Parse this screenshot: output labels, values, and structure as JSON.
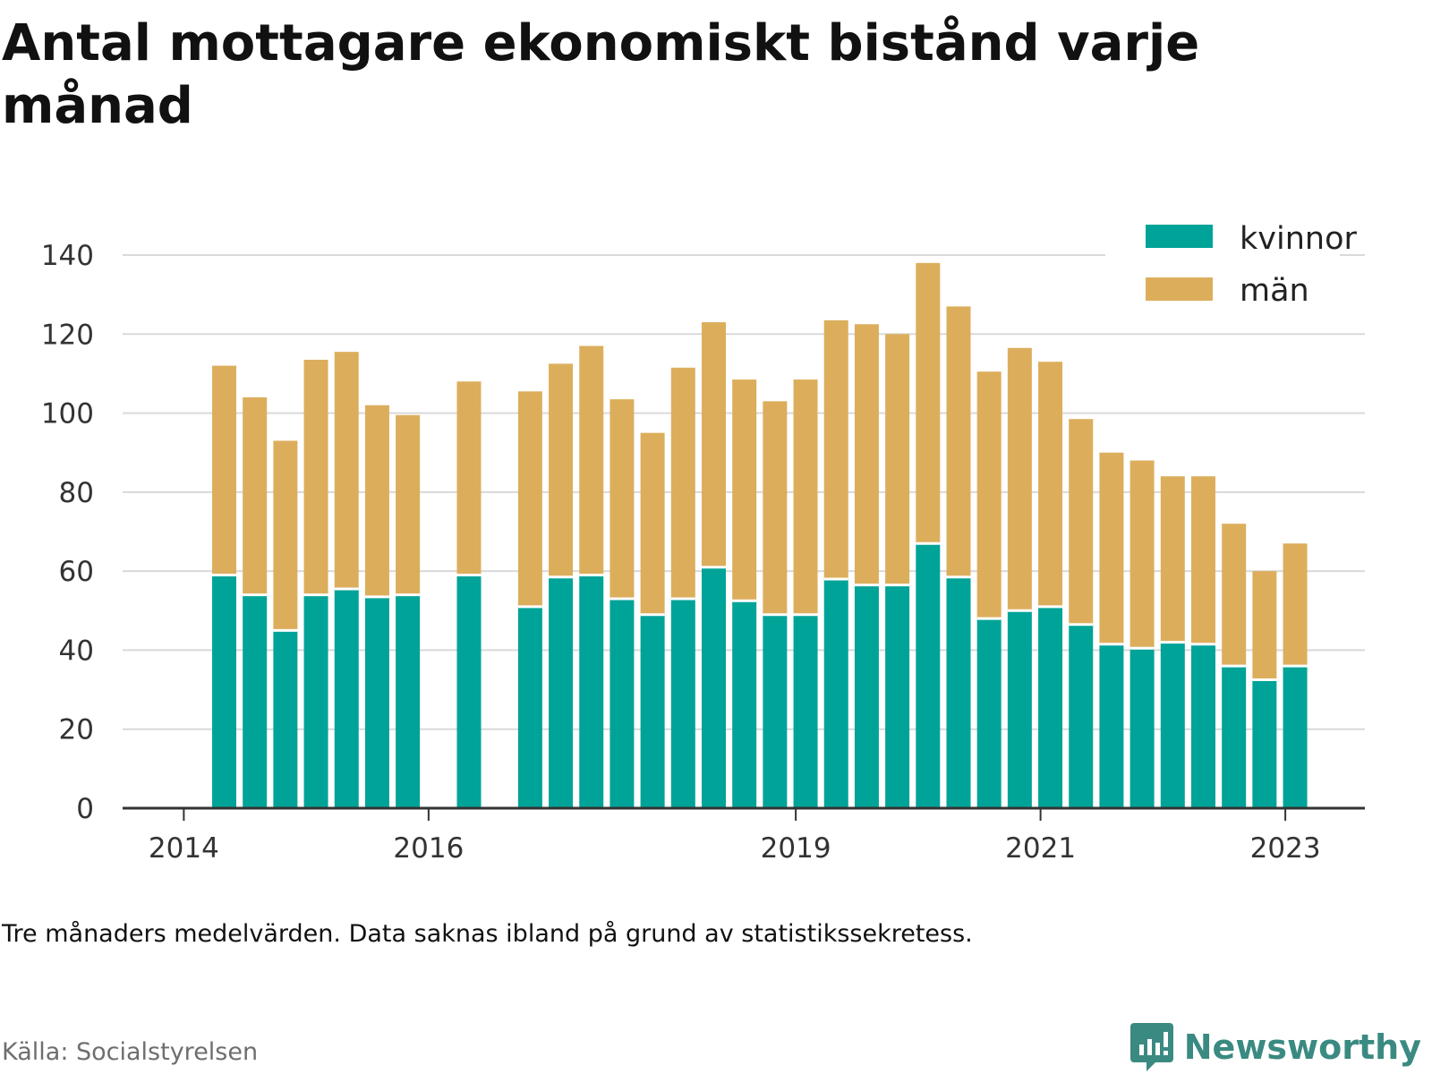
{
  "title": "Antal mottagare ekonomiskt bistånd varje månad",
  "note": "Tre månaders medelvärden. Data saknas ibland på grund av statistikssekretess.",
  "source": "Källa: Socialstyrelsen",
  "brand": "Newsworthy",
  "colors": {
    "kvinnor": "#00a398",
    "man": "#dcae5c",
    "grid": "#d9d9d9",
    "axis": "#333333",
    "brand": "#3a8a82"
  },
  "chart_data": {
    "type": "bar",
    "stacked": true,
    "x_unit": "fractional year (bar midpoint)",
    "xlim": [
      2013.5,
      2023.65
    ],
    "ylim": [
      0,
      140
    ],
    "y_ticks": [
      0,
      20,
      40,
      60,
      80,
      100,
      120,
      140
    ],
    "x_ticks": [
      "2014",
      "2016",
      "2019",
      "2021",
      "2023"
    ],
    "grid": true,
    "legend_position": "top-right",
    "x": [
      2014.33,
      2014.58,
      2014.83,
      2015.08,
      2015.33,
      2015.58,
      2015.83,
      2016.33,
      2016.83,
      2017.08,
      2017.33,
      2017.58,
      2017.83,
      2018.08,
      2018.33,
      2018.58,
      2018.83,
      2019.08,
      2019.33,
      2019.58,
      2019.83,
      2020.08,
      2020.33,
      2020.58,
      2020.83,
      2021.08,
      2021.33,
      2021.58,
      2021.83,
      2022.08,
      2022.33,
      2022.58,
      2022.83,
      2023.08
    ],
    "series": [
      {
        "name": "kvinnor",
        "values": [
          59,
          54,
          45,
          54,
          55.5,
          53.5,
          54,
          59,
          51,
          58.5,
          59,
          53,
          49,
          53,
          61,
          52.5,
          49,
          49,
          58,
          56.5,
          56.5,
          67,
          58.5,
          48,
          50,
          51,
          46.5,
          41.5,
          40.5,
          42,
          41.5,
          36,
          32.5,
          36
        ]
      },
      {
        "name": "män",
        "values": [
          53,
          50,
          48,
          59.5,
          60,
          48.5,
          45.5,
          49,
          54.5,
          54,
          58,
          50.5,
          46,
          58.5,
          62,
          56,
          54,
          59.5,
          65.5,
          66,
          63.5,
          71,
          68.5,
          62.5,
          66.5,
          62,
          52,
          48.5,
          47.5,
          42,
          42.5,
          36,
          27.5,
          31
        ]
      }
    ]
  }
}
